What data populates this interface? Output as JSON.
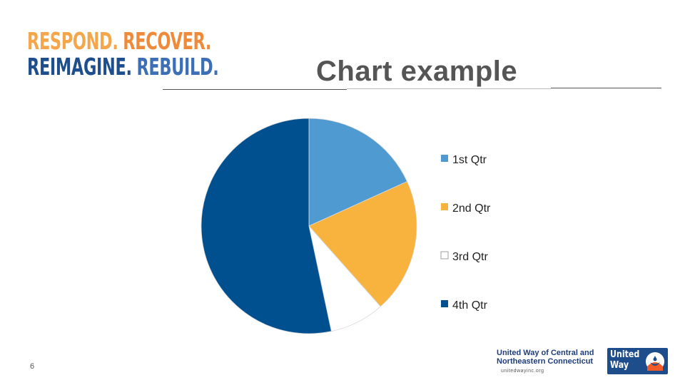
{
  "header": {
    "brand_line1": [
      "RESPOND.",
      "RECOVER."
    ],
    "brand_line2": [
      "REIMAGINE.",
      "REBUILD."
    ],
    "brand_colors": [
      "#f5a64a",
      "#ef8a3a",
      "#1f4e8c",
      "#3d6fb6"
    ],
    "title": "Chart example"
  },
  "chart_data": {
    "type": "pie",
    "title": "",
    "categories": [
      "1st Qtr",
      "2nd Qtr",
      "3rd Qtr",
      "4th Qtr"
    ],
    "values": [
      8.2,
      9.1,
      3.7,
      24.0
    ],
    "colors": [
      "#4f9bd1",
      "#f7b33d",
      "#ffffff",
      "#00508f"
    ],
    "start_angle_deg": 0,
    "direction": "clockwise",
    "legend_position": "right"
  },
  "footer": {
    "page_number": "6",
    "org_name": "United Way of Central and Northeastern Connecticut",
    "org_url": "unitedwayinc.org",
    "logo_text": "United Way"
  }
}
